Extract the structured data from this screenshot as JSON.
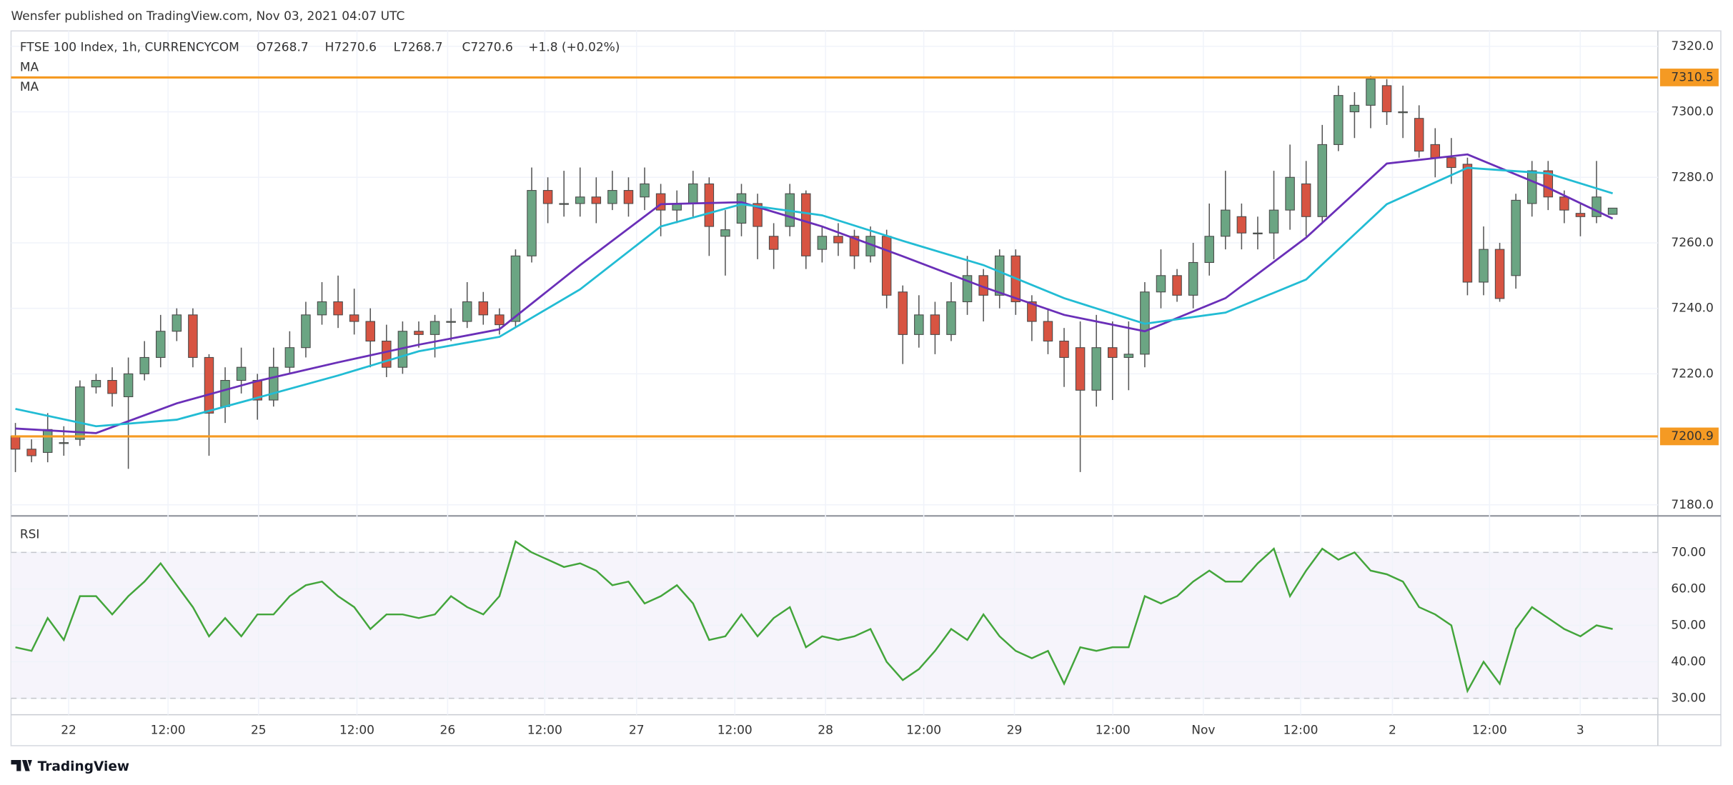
{
  "header": {
    "published": "Wensfer published on TradingView.com, Nov 03, 2021 04:07 UTC"
  },
  "footer": {
    "brand": "TradingView"
  },
  "chart_data": [
    {
      "type": "candlestick",
      "title": "FTSE 100 Index, 1h, CURRENCYCOM",
      "ohlc_labels": [
        "O7268.7",
        "H7270.6",
        "L7268.7",
        "C7270.6"
      ],
      "change_label": "+1.8 (+0.02%)",
      "up_color": "#6ba583",
      "down_color": "#d75442",
      "categories": [
        null,
        null,
        null,
        null,
        null,
        null,
        null,
        null,
        null,
        null,
        null,
        null,
        null,
        null,
        null,
        null,
        null,
        null,
        null,
        null,
        null,
        null,
        null,
        null,
        null,
        null,
        null,
        null,
        null,
        null,
        null,
        null,
        null,
        null,
        null,
        null,
        null,
        null,
        null,
        null,
        null,
        null,
        null,
        null,
        null,
        null,
        null,
        null,
        null,
        null,
        null,
        null,
        null,
        null,
        null,
        null,
        null,
        null,
        null,
        null,
        null,
        null,
        null,
        null,
        null,
        null,
        null,
        null,
        null,
        null,
        null,
        null,
        null,
        null,
        null,
        null,
        null,
        null,
        null,
        null,
        null,
        null,
        null,
        null,
        null,
        null,
        null,
        null,
        null,
        null,
        null,
        null,
        null,
        null,
        null,
        null,
        null,
        null,
        null,
        null
      ],
      "open": [
        7201,
        7197,
        7196,
        7199,
        7200,
        7216,
        7218,
        7213,
        7220,
        7225,
        7233,
        7238,
        7225,
        7210,
        7218,
        7218,
        7212,
        7222,
        7228,
        7238,
        7242,
        7238,
        7236,
        7230,
        7222,
        7233,
        7232,
        7236,
        7236,
        7242,
        7238,
        7236,
        7256,
        7276,
        7272,
        7272,
        7274,
        7272,
        7276,
        7274,
        7275,
        7270,
        7272,
        7278,
        7262,
        7266,
        7272,
        7262,
        7265,
        7275,
        7258,
        7262,
        7262,
        7256,
        7262,
        7245,
        7232,
        7238,
        7232,
        7242,
        7250,
        7244,
        7256,
        7242,
        7236,
        7230,
        7228,
        7215,
        7228,
        7225,
        7226,
        7245,
        7250,
        7244,
        7254,
        7262,
        7268,
        7263,
        7263,
        7270,
        7278,
        7268,
        7290,
        7300,
        7302,
        7308,
        7300,
        7298,
        7290,
        7286,
        7284,
        7248,
        7258,
        7250,
        7272,
        7282,
        7274,
        7269,
        7268,
        7268.7
      ],
      "high": [
        7205,
        7200,
        7208,
        7204,
        7218,
        7220,
        7222,
        7225,
        7230,
        7238,
        7240,
        7240,
        7226,
        7222,
        7228,
        7220,
        7228,
        7233,
        7242,
        7248,
        7250,
        7246,
        7240,
        7235,
        7236,
        7236,
        7238,
        7240,
        7248,
        7245,
        7240,
        7258,
        7283,
        7280,
        7282,
        7283,
        7280,
        7282,
        7280,
        7283,
        7278,
        7276,
        7282,
        7280,
        7270,
        7278,
        7275,
        7266,
        7278,
        7276,
        7265,
        7266,
        7264,
        7265,
        7264,
        7247,
        7244,
        7242,
        7248,
        7256,
        7252,
        7258,
        7258,
        7244,
        7240,
        7234,
        7236,
        7238,
        7236,
        7236,
        7248,
        7258,
        7252,
        7260,
        7272,
        7282,
        7272,
        7268,
        7282,
        7290,
        7285,
        7296,
        7308,
        7306,
        7311,
        7310,
        7308,
        7302,
        7295,
        7292,
        7286,
        7265,
        7260,
        7275,
        7285,
        7285,
        7276,
        7272,
        7285,
        7270.6
      ],
      "low": [
        7190,
        7193,
        7193,
        7195,
        7198,
        7214,
        7210,
        7191,
        7218,
        7222,
        7230,
        7222,
        7195,
        7205,
        7214,
        7206,
        7210,
        7220,
        7225,
        7235,
        7234,
        7232,
        7222,
        7219,
        7220,
        7228,
        7225,
        7230,
        7234,
        7235,
        7232,
        7234,
        7254,
        7266,
        7268,
        7268,
        7266,
        7270,
        7268,
        7270,
        7262,
        7266,
        7268,
        7256,
        7250,
        7262,
        7255,
        7252,
        7262,
        7252,
        7254,
        7256,
        7252,
        7254,
        7240,
        7223,
        7228,
        7226,
        7230,
        7238,
        7236,
        7240,
        7238,
        7230,
        7226,
        7216,
        7190,
        7210,
        7212,
        7215,
        7222,
        7240,
        7242,
        7240,
        7250,
        7258,
        7258,
        7258,
        7255,
        7264,
        7262,
        7266,
        7288,
        7292,
        7295,
        7296,
        7292,
        7286,
        7280,
        7278,
        7244,
        7244,
        7242,
        7246,
        7268,
        7270,
        7266,
        7262,
        7266,
        7268.7
      ],
      "close": [
        7197,
        7195,
        7203,
        7199,
        7216,
        7218,
        7214,
        7220,
        7225,
        7233,
        7238,
        7225,
        7208,
        7218,
        7222,
        7212,
        7222,
        7228,
        7238,
        7242,
        7238,
        7236,
        7230,
        7222,
        7233,
        7232,
        7236,
        7236,
        7242,
        7238,
        7235,
        7256,
        7276,
        7272,
        7272,
        7274,
        7272,
        7276,
        7272,
        7278,
        7270,
        7272,
        7278,
        7265,
        7264,
        7275,
        7265,
        7258,
        7275,
        7256,
        7262,
        7260,
        7256,
        7262,
        7244,
        7232,
        7238,
        7232,
        7242,
        7250,
        7244,
        7256,
        7242,
        7236,
        7230,
        7225,
        7215,
        7228,
        7225,
        7226,
        7245,
        7250,
        7244,
        7254,
        7262,
        7270,
        7263,
        7263,
        7270,
        7280,
        7268,
        7290,
        7305,
        7302,
        7310,
        7300,
        7300,
        7288,
        7286,
        7283,
        7248,
        7258,
        7243,
        7273,
        7282,
        7274,
        7270,
        7268,
        7274,
        7270.6
      ],
      "lines": [
        {
          "name": "MA",
          "color": "#6a2fb8",
          "x": [
            0,
            5,
            10,
            15,
            20,
            25,
            30,
            35,
            40,
            45,
            50,
            55,
            60,
            65,
            70,
            75,
            80,
            85,
            90,
            95,
            99
          ],
          "values": [
            7203.3,
            7201.9,
            7211,
            7217.8,
            7223.5,
            7228.9,
            7233.6,
            7253.2,
            7271.8,
            7272.4,
            7265,
            7255.9,
            7246.5,
            7238,
            7233,
            7243.1,
            7261.6,
            7284.2,
            7287,
            7276.8,
            7267.4
          ]
        },
        {
          "name": "MA",
          "color": "#22bcd4",
          "x": [
            0,
            5,
            10,
            15,
            20,
            25,
            30,
            35,
            40,
            45,
            50,
            55,
            60,
            65,
            70,
            75,
            80,
            85,
            90,
            95,
            99
          ],
          "values": [
            7209.3,
            7204,
            7206,
            7212.7,
            7219.5,
            7226.9,
            7231.3,
            7245.8,
            7265,
            7271.8,
            7268.4,
            7260.6,
            7253.2,
            7243.1,
            7235.3,
            7238.7,
            7248.8,
            7271.8,
            7282.9,
            7281.2,
            7275.1
          ]
        }
      ],
      "hlines": [
        {
          "value": 7310.5,
          "color": "#f59a23"
        },
        {
          "value": 7200.9,
          "color": "#f59a23"
        }
      ],
      "xlim": [
        -0.27,
        101.8
      ],
      "ylim": [
        7177.3,
        7324.7
      ],
      "yticks": [
        {
          "value": 7180,
          "label": "7180.0"
        },
        {
          "value": 7200,
          "label": "7200.0"
        },
        {
          "value": 7220,
          "label": "7220.0"
        },
        {
          "value": 7240,
          "label": "7240.0"
        },
        {
          "value": 7260,
          "label": "7260.0"
        },
        {
          "value": 7280,
          "label": "7280.0"
        },
        {
          "value": 7300,
          "label": "7300.0"
        },
        {
          "value": 7320,
          "label": "7320.0"
        }
      ],
      "grid": true
    },
    {
      "type": "line",
      "title": "RSI",
      "categories": [
        null,
        null,
        null,
        null,
        null,
        null,
        null,
        null,
        null,
        null,
        null,
        null,
        null,
        null,
        null,
        null,
        null,
        null,
        null,
        null,
        null,
        null,
        null,
        null,
        null,
        null,
        null,
        null,
        null,
        null,
        null,
        null,
        null,
        null,
        null,
        null,
        null,
        null,
        null,
        null,
        null,
        null,
        null,
        null,
        null,
        null,
        null,
        null,
        null,
        null,
        null,
        null,
        null,
        null,
        null,
        null,
        null,
        null,
        null,
        null,
        null,
        null,
        null,
        null,
        null,
        null,
        null,
        null,
        null,
        null,
        null,
        null,
        null,
        null,
        null,
        null,
        null,
        null,
        null,
        null,
        null,
        null,
        null,
        null,
        null,
        null,
        null,
        null,
        null,
        null,
        null,
        null,
        null,
        null,
        null,
        null,
        null,
        null,
        null,
        null
      ],
      "series": [
        {
          "name": "RSI",
          "color": "#43a53b",
          "values": [
            44,
            43,
            52,
            46,
            58,
            58,
            53,
            58,
            62,
            67,
            61,
            55,
            47,
            52,
            47,
            53,
            53,
            58,
            61,
            62,
            58,
            55,
            49,
            53,
            53,
            52,
            53,
            58,
            55,
            53,
            58,
            73,
            70,
            68,
            66,
            67,
            65,
            61,
            62,
            56,
            58,
            61,
            56,
            46,
            47,
            53,
            47,
            52,
            55,
            44,
            47,
            46,
            47,
            49,
            40,
            35,
            38,
            43,
            49,
            46,
            53,
            47,
            43,
            41,
            43,
            34,
            44,
            43,
            44,
            44,
            58,
            56,
            58,
            62,
            65,
            62,
            62,
            67,
            71,
            58,
            65,
            71,
            68,
            70,
            65,
            64,
            62,
            55,
            53,
            50,
            32,
            40,
            34,
            49,
            55,
            52,
            49,
            47,
            50,
            49
          ]
        }
      ],
      "bands": [
        30,
        70
      ],
      "xlim": [
        -0.27,
        101.8
      ],
      "ylim": [
        25.5,
        79.7
      ],
      "yticks": [
        {
          "value": 30,
          "label": "30.00"
        },
        {
          "value": 40,
          "label": "40.00"
        },
        {
          "value": 50,
          "label": "50.00"
        },
        {
          "value": 60,
          "label": "60.00"
        },
        {
          "value": 70,
          "label": "70.00"
        }
      ],
      "xticks": [
        {
          "value": 3.3,
          "label": "22"
        },
        {
          "value": 9.46,
          "label": "12:00"
        },
        {
          "value": 15.07,
          "label": "25"
        },
        {
          "value": 21.17,
          "label": "12:00"
        },
        {
          "value": 26.79,
          "label": "26"
        },
        {
          "value": 32.81,
          "label": "12:00"
        },
        {
          "value": 38.5,
          "label": "27"
        },
        {
          "value": 44.59,
          "label": "12:00"
        },
        {
          "value": 50.21,
          "label": "28"
        },
        {
          "value": 56.3,
          "label": "12:00"
        },
        {
          "value": 61.92,
          "label": "29"
        },
        {
          "value": 68.02,
          "label": "12:00"
        },
        {
          "value": 73.63,
          "label": "Nov"
        },
        {
          "value": 79.66,
          "label": "12:00"
        },
        {
          "value": 85.35,
          "label": "2"
        },
        {
          "value": 91.37,
          "label": "12:00"
        },
        {
          "value": 96.99,
          "label": "3"
        }
      ],
      "grid": true
    }
  ]
}
